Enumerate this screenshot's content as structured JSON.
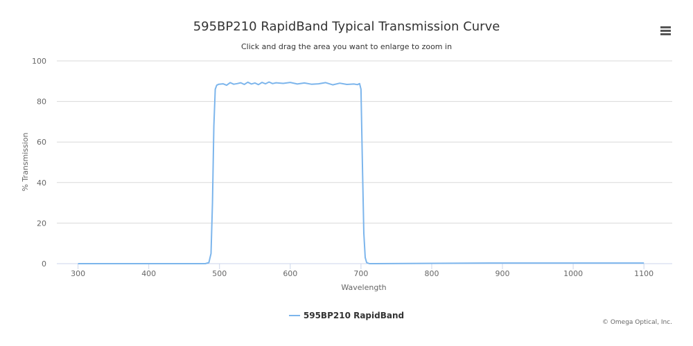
{
  "chart_data": {
    "type": "line",
    "title": "595BP210 RapidBand Typical Transmission Curve",
    "subtitle": "Click and drag the area you want to enlarge to zoom in",
    "xlabel": "Wavelength",
    "ylabel": "% Transmission",
    "xlim": [
      270,
      1140
    ],
    "ylim": [
      0,
      100
    ],
    "x_ticks": [
      "300",
      "400",
      "500",
      "600",
      "700",
      "800",
      "900",
      "1000",
      "1100"
    ],
    "y_ticks": [
      "0",
      "20",
      "40",
      "60",
      "80",
      "100"
    ],
    "grid": "horizontal",
    "legend_position": "bottom-center",
    "series": [
      {
        "name": "595BP210 RapidBand",
        "color": "#7cb5ec",
        "x": [
          300,
          480,
          485,
          488,
          490,
          492,
          494,
          496,
          499,
          505,
          510,
          515,
          520,
          525,
          530,
          535,
          540,
          545,
          550,
          555,
          560,
          565,
          570,
          575,
          580,
          590,
          600,
          610,
          620,
          630,
          640,
          650,
          660,
          670,
          680,
          690,
          695,
          698,
          700,
          702,
          704,
          706,
          708,
          712,
          720,
          880,
          1100
        ],
        "values": [
          0,
          0,
          0.5,
          5,
          30,
          68,
          86,
          88,
          88.5,
          88.7,
          88,
          89.3,
          88.5,
          88.8,
          89.2,
          88.4,
          89.5,
          88.6,
          89.1,
          88.3,
          89.4,
          88.7,
          89.6,
          88.8,
          89.2,
          88.9,
          89.4,
          88.6,
          89.1,
          88.5,
          88.7,
          89.3,
          88.2,
          89.0,
          88.4,
          88.6,
          88.3,
          88.8,
          86,
          50,
          15,
          3,
          0.5,
          0,
          0,
          0.3,
          0.3
        ]
      }
    ]
  },
  "menu_icon": "hamburger-menu-icon",
  "credits": "© Omega Optical, Inc."
}
